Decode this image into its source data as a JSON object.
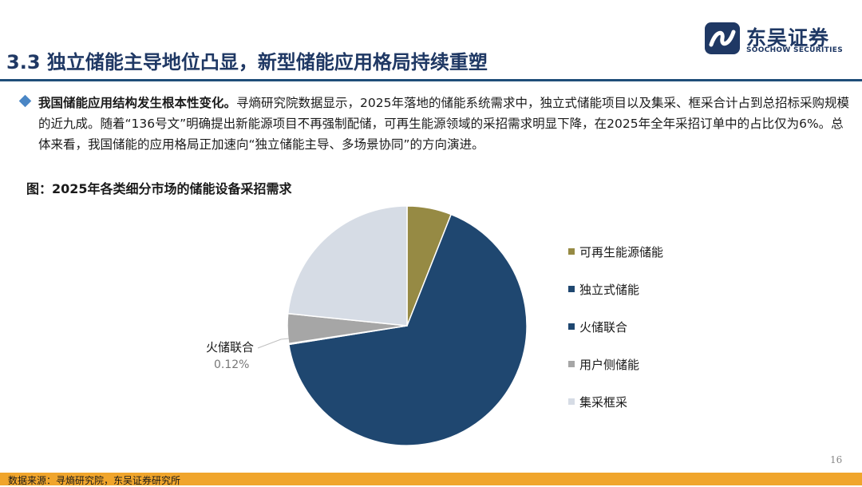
{
  "header": {
    "title": "3.3 独立储能主导地位凸显，新型储能应用格局持续重塑",
    "brand_cn": "东吴证券",
    "brand_en": "SOOCHOW SECURITIES"
  },
  "bullet": {
    "bold_text": "我国储能应用结构发生根本性变化。",
    "body_text": "寻熵研究院数据显示，2025年落地的储能系统需求中，独立式储能项目以及集采、框采合计占到总招标采购规模的近九成。随着“136号文”明确提出新能源项目不再强制配储，可再生能源领域的采招需求明显下降，在2025年全年采招订单中的占比仅为6%。总体来看，我国储能的应用格局正加速向“独立储能主导、多场景协同”的方向演进。"
  },
  "figure_title": "图：2025年各类细分市场的储能设备采招需求",
  "chart_data": {
    "type": "pie",
    "title": "",
    "series": [
      {
        "name": "可再生能源储能",
        "value": 6.0,
        "color": "#968a44"
      },
      {
        "name": "独立式储能",
        "value": 66.5,
        "color": "#1f4770"
      },
      {
        "name": "火储联合",
        "value": 0.12,
        "color": "#1f4770"
      },
      {
        "name": "用户侧储能",
        "value": 4.0,
        "color": "#a6a6a6"
      },
      {
        "name": "集采框采",
        "value": 23.38,
        "color": "#d6dce5"
      }
    ],
    "legend_position": "right",
    "callout": {
      "label": "火储联合",
      "value": "0.12%"
    }
  },
  "page_number": "16",
  "footer": {
    "source": "数据来源：寻熵研究院，东吴证券研究所"
  },
  "colors": {
    "title": "#1f3864",
    "rule": "#1f4e79",
    "bullet": "#4a86c5",
    "footer_bar": "#f0a52c"
  }
}
